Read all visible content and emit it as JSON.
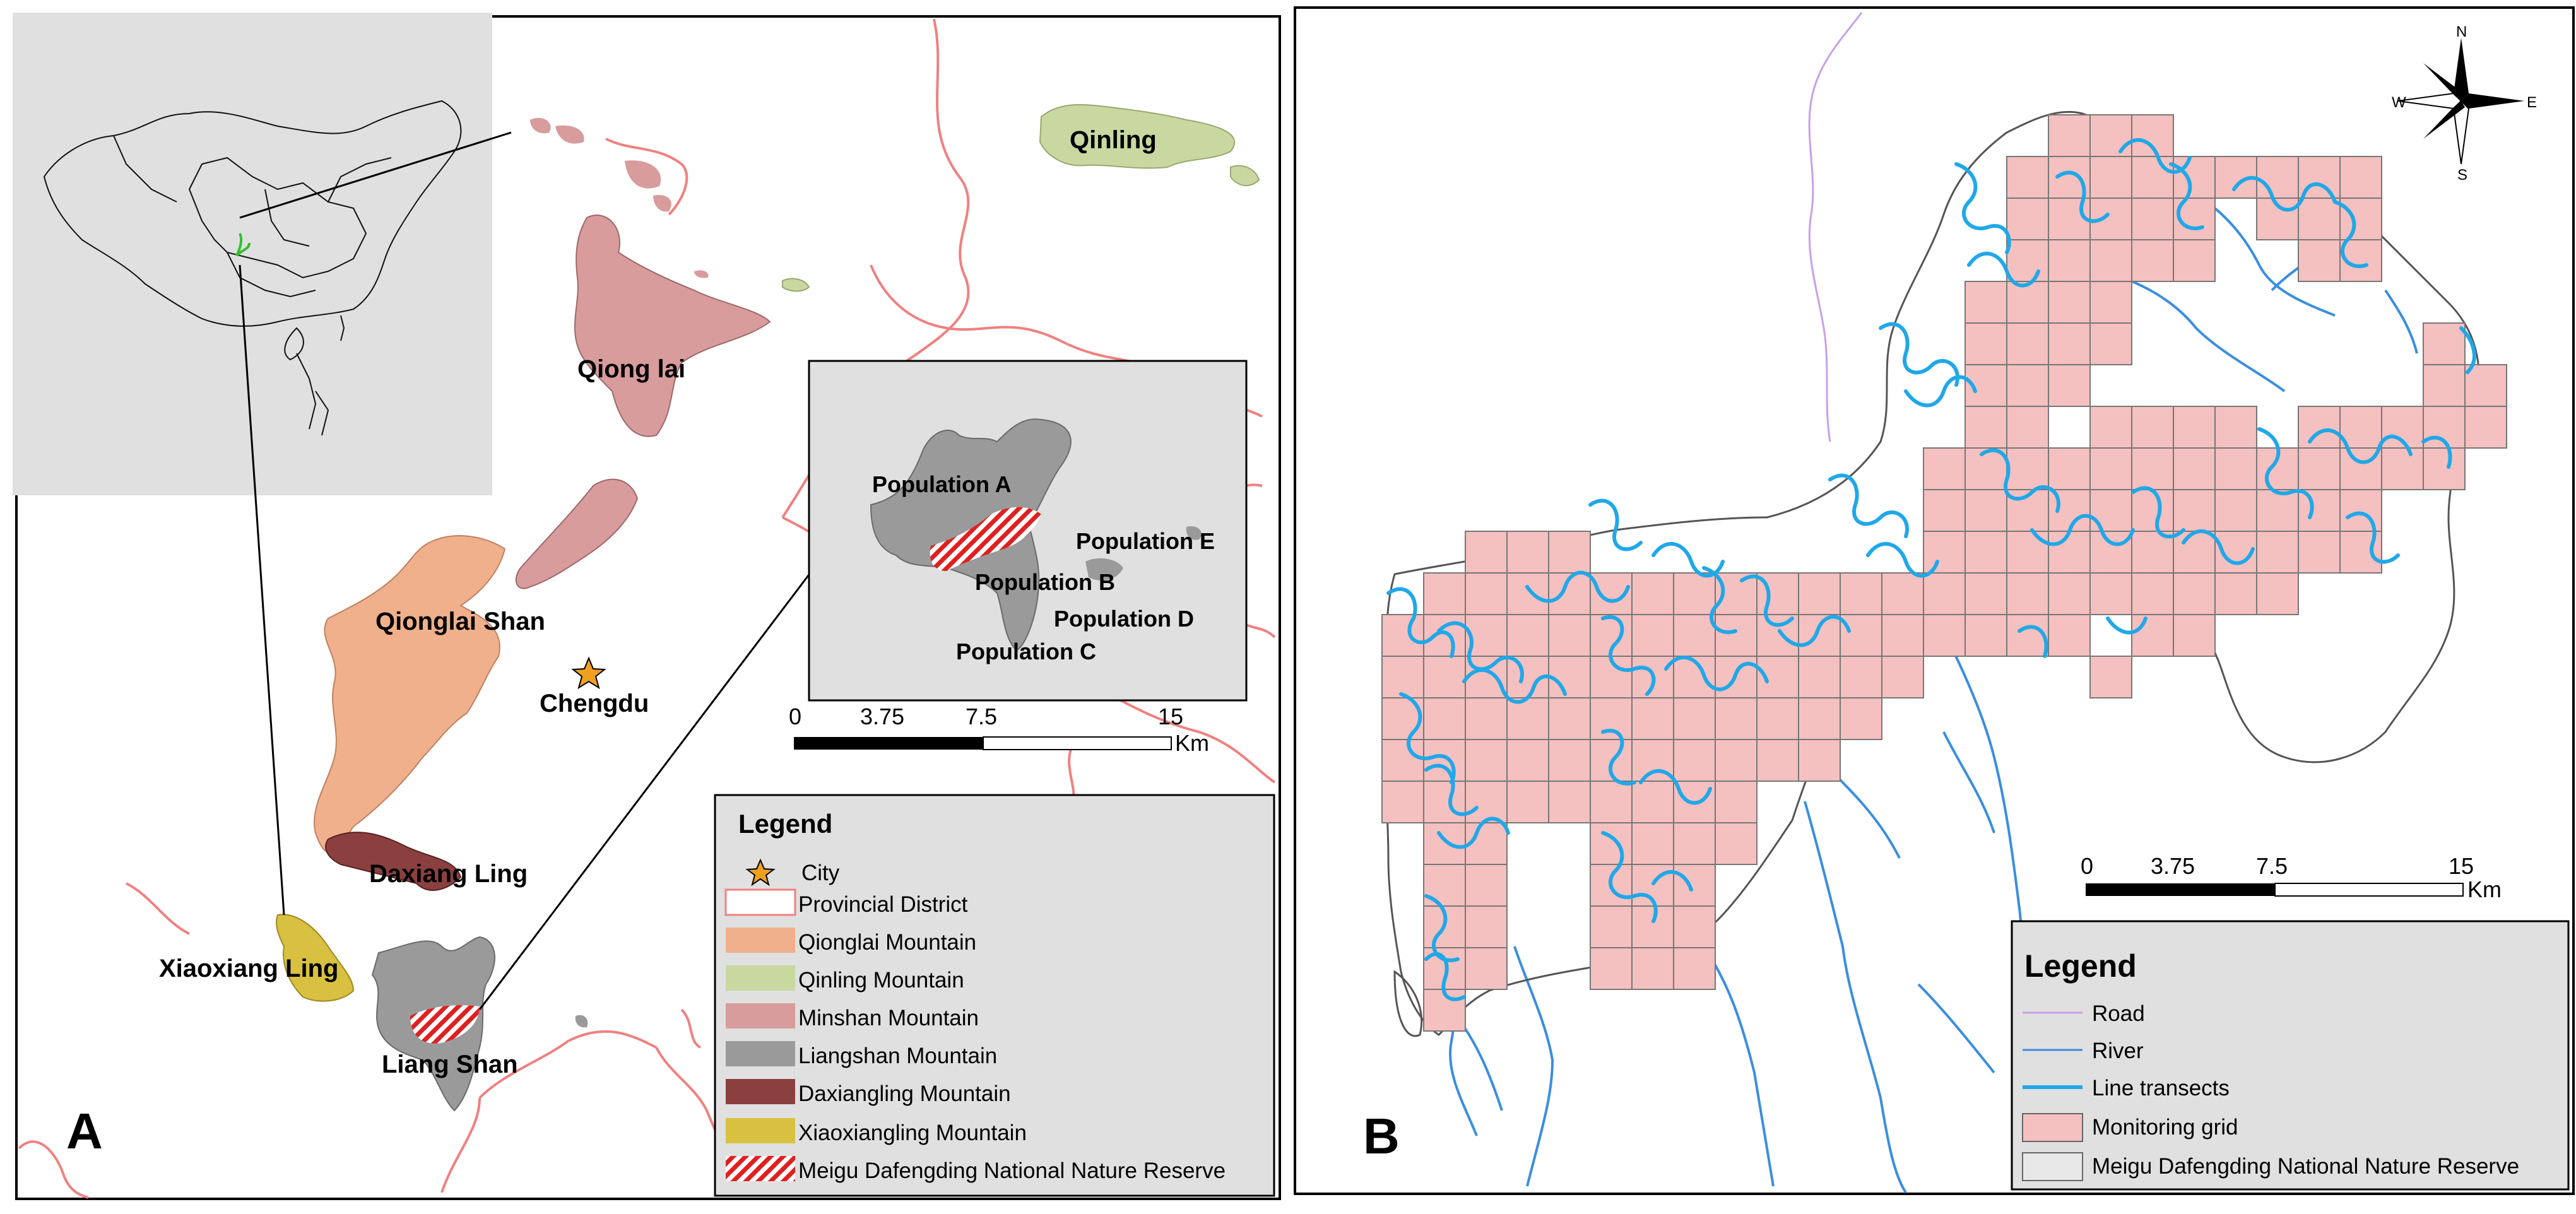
{
  "panel_a": {
    "panel_label": "A",
    "mountain_labels": {
      "qinling": "Qinling",
      "qionglai_upper": "Qiong lai",
      "qionglai_shan": "Qionglai Shan",
      "daxiang_ling": "Daxiang Ling",
      "xiaoxiang_ling": "Xiaoxiang Ling",
      "liang_shan": "Liang Shan"
    },
    "city": {
      "name": "Chengdu",
      "marker_color": "#f0a020"
    },
    "inset": {
      "populations": [
        "Population A",
        "Population B",
        "Population C",
        "Population D",
        "Population E"
      ]
    },
    "scalebar": {
      "ticks": [
        "0",
        "3.75",
        "7.5",
        "15"
      ],
      "unit": "Km"
    },
    "legend": {
      "title": "Legend",
      "items": [
        {
          "label": "City",
          "swatch": "star",
          "color": "#f0a020"
        },
        {
          "label": "Provincial District",
          "swatch": "outline",
          "color": "#f08080"
        },
        {
          "label": "Qionglai Mountain",
          "swatch": "fill",
          "color": "#f0b08c"
        },
        {
          "label": "Qinling Mountain",
          "swatch": "fill",
          "color": "#c8d8a0"
        },
        {
          "label": "Minshan Mountain",
          "swatch": "fill",
          "color": "#d89c9c"
        },
        {
          "label": "Liangshan Mountain",
          "swatch": "fill",
          "color": "#9a9a9a"
        },
        {
          "label": "Daxiangling Mountain",
          "swatch": "fill",
          "color": "#8b4040"
        },
        {
          "label": "Xiaoxiangling Mountain",
          "swatch": "fill",
          "color": "#d8c040"
        },
        {
          "label": "Meigu Dafengding National Nature Reserve",
          "swatch": "hatch",
          "color": "#e02020"
        }
      ]
    }
  },
  "panel_b": {
    "panel_label": "B",
    "compass": {
      "n": "N",
      "s": "S",
      "e": "E",
      "w": "W"
    },
    "scalebar": {
      "ticks": [
        "0",
        "3.75",
        "7.5",
        "15"
      ],
      "unit": "Km"
    },
    "legend": {
      "title": "Legend",
      "items": [
        {
          "label": "Road",
          "swatch": "line",
          "color": "#c8a0e8"
        },
        {
          "label": "River",
          "swatch": "line",
          "color": "#3a8ee0"
        },
        {
          "label": "Line transects",
          "swatch": "thickline",
          "color": "#20a8e8"
        },
        {
          "label": "Monitoring grid",
          "swatch": "fill",
          "color": "#f4c0c0"
        },
        {
          "label": "Meigu Dafengding National Nature Reserve",
          "swatch": "fill",
          "color": "#e8e8e8"
        }
      ]
    }
  }
}
